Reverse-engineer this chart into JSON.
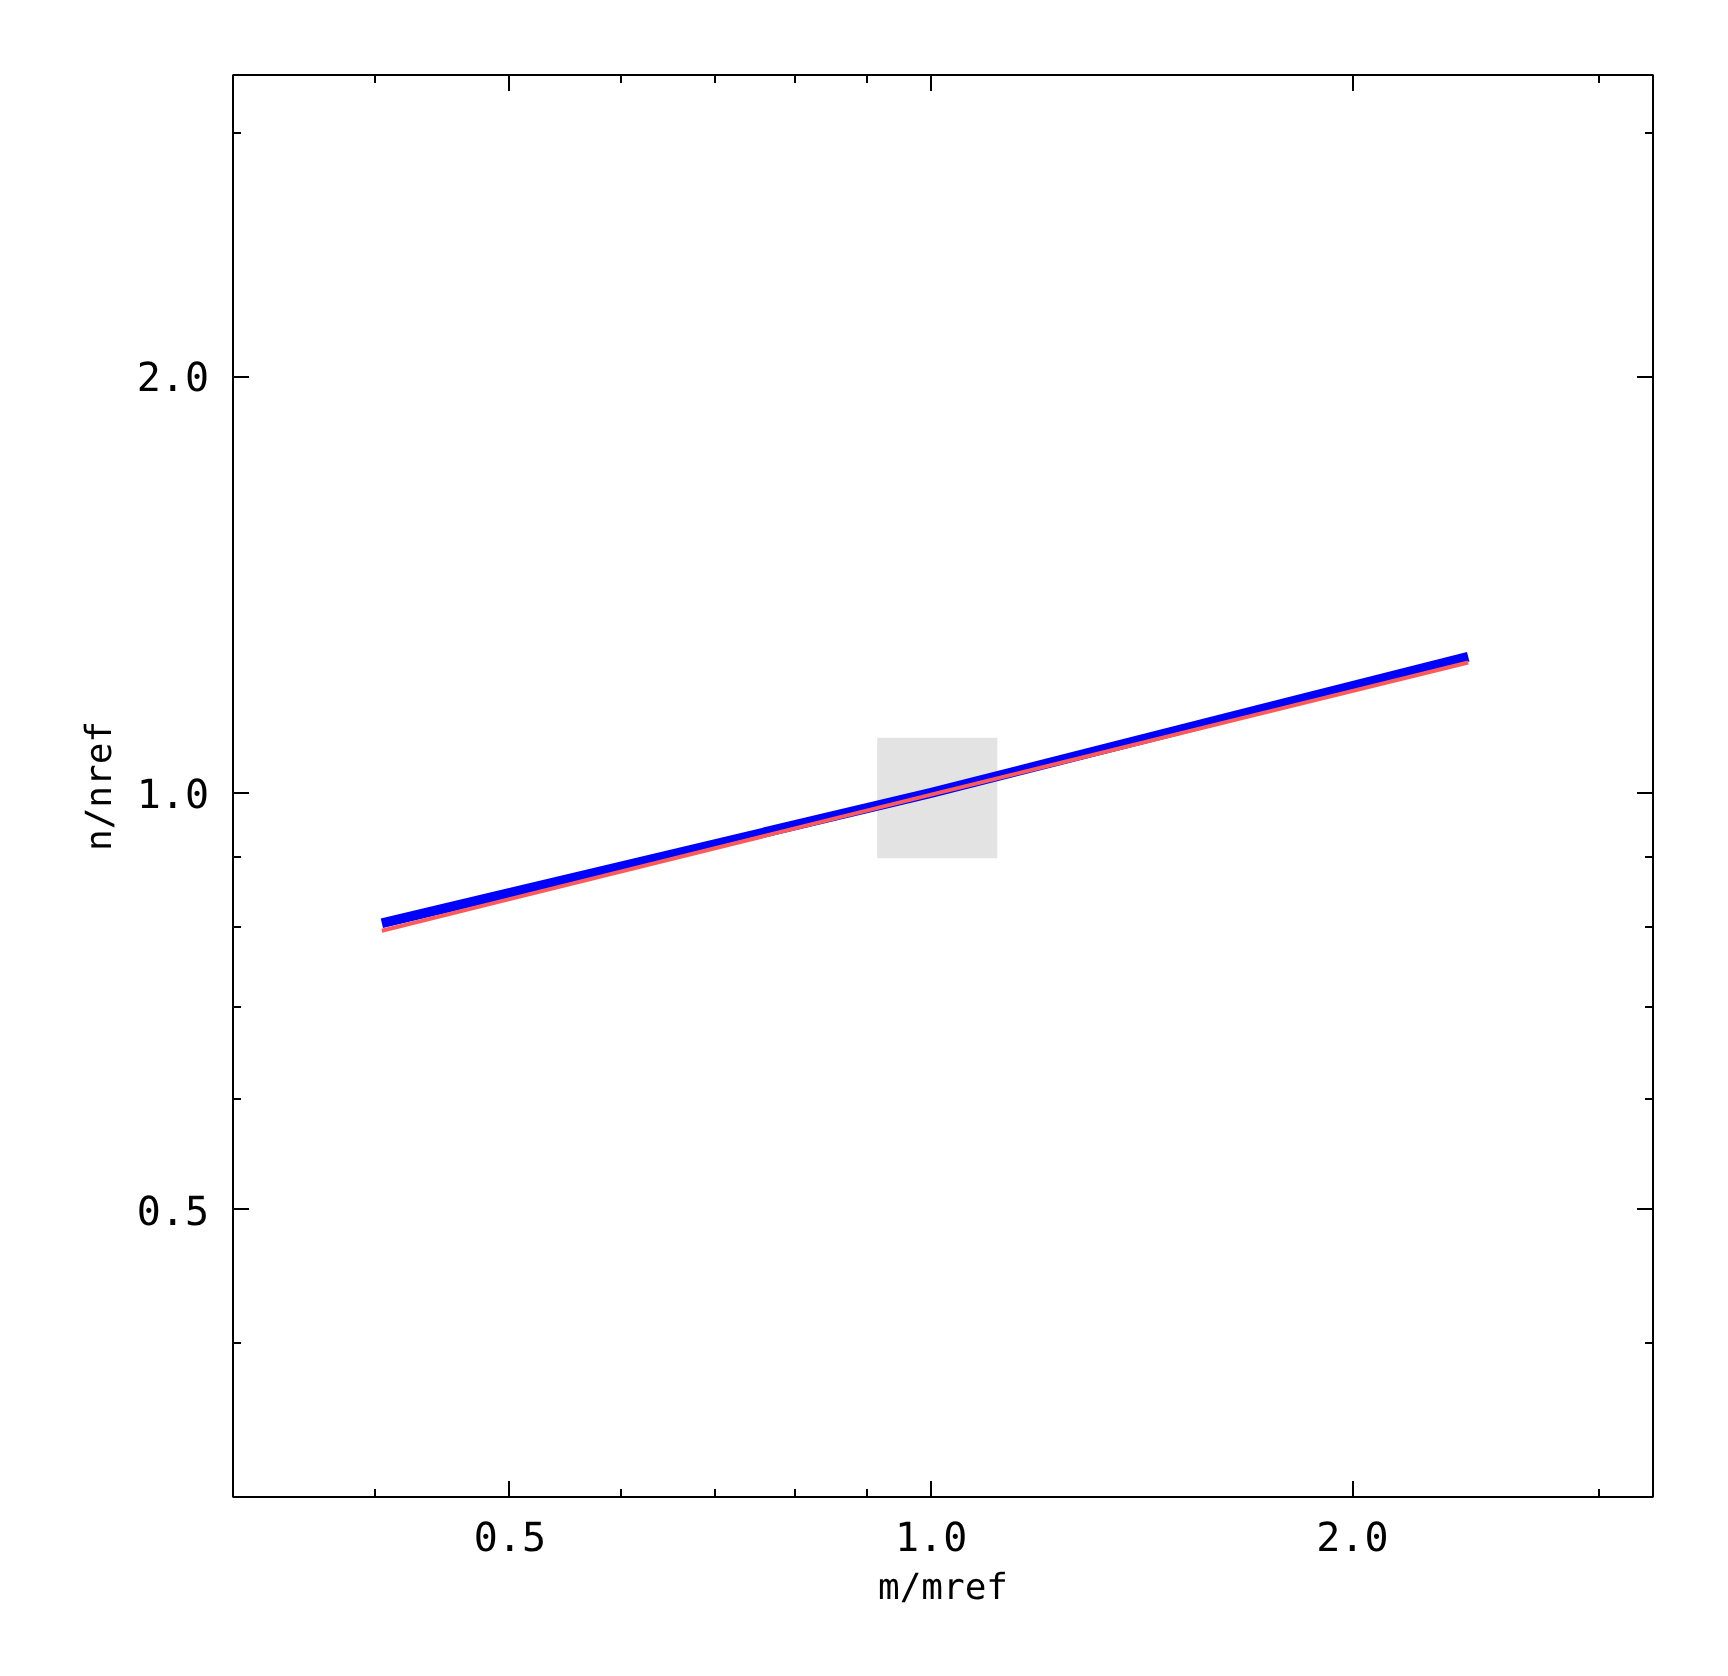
{
  "chart_data": {
    "type": "line",
    "xlabel": "m/mref",
    "ylabel": "n/nref",
    "log": "xy",
    "grid": false,
    "line_style": "solid",
    "marker": "none",
    "xlim": [
      0.317,
      3.28
    ],
    "ylim": [
      0.31,
      3.3
    ],
    "xticks": [
      {
        "value": 0.4,
        "label": null
      },
      {
        "value": 0.5,
        "label": "0.5"
      },
      {
        "value": 0.6,
        "label": null
      },
      {
        "value": 0.7,
        "label": null
      },
      {
        "value": 0.8,
        "label": null
      },
      {
        "value": 0.9,
        "label": null
      },
      {
        "value": 1,
        "label": "1.0"
      },
      {
        "value": 2,
        "label": "2.0"
      },
      {
        "value": 3,
        "label": null
      }
    ],
    "yticks": [
      {
        "value": 0.4,
        "label": null
      },
      {
        "value": 0.5,
        "label": "0.5"
      },
      {
        "value": 0.6,
        "label": null
      },
      {
        "value": 0.7,
        "label": null
      },
      {
        "value": 0.8,
        "label": null
      },
      {
        "value": 0.9,
        "label": null
      },
      {
        "value": 1,
        "label": "1.0"
      },
      {
        "value": 2,
        "label": "2.0"
      },
      {
        "value": 3,
        "label": null
      }
    ],
    "series": [
      {
        "type": "area",
        "color": "#e3e3e3",
        "x": [
          0.915,
          1.115
        ],
        "values": [
          null,
          null
        ],
        "lower": [
          0.897,
          0.897
        ],
        "upper": [
          1.096,
          1.096
        ]
      },
      {
        "color": "#0000ff",
        "x": [
          0.405,
          1.0,
          2.42
        ],
        "values": [
          0.805,
          1.0,
          1.254
        ]
      },
      {
        "color": "#ff5a5a",
        "x": [
          0.405,
          1.0,
          2.42
        ],
        "values": [
          0.795,
          0.997,
          1.242
        ]
      }
    ]
  }
}
